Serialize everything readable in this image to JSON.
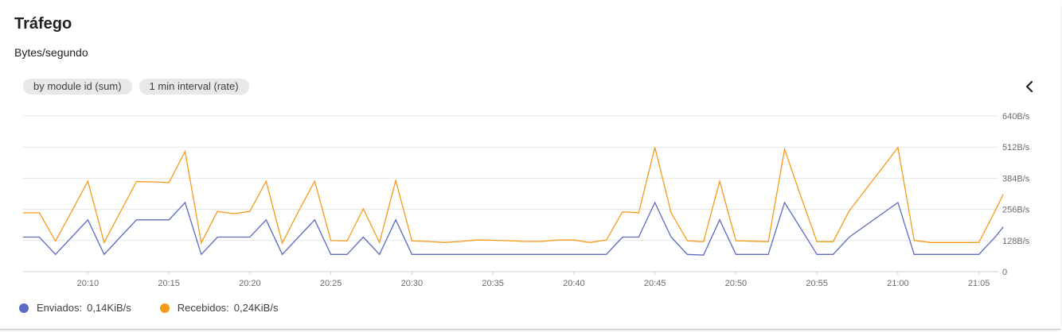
{
  "header": {
    "title": "Tráfego",
    "subtitle": "Bytes/segundo"
  },
  "chips": [
    "by module id (sum)",
    "1 min interval (rate)"
  ],
  "controls": {
    "collapse_icon": "chevron-left-icon"
  },
  "colors": {
    "enviados": "#5c6bc0",
    "recebidos": "#f59b18",
    "grid": "#e6e6e6",
    "axis_text": "#6b6b6b"
  },
  "legend": [
    {
      "label": "Enviados:",
      "value": "0,14KiB/s",
      "color": "#5c6bc0"
    },
    {
      "label": "Recebidos:",
      "value": "0,24KiB/s",
      "color": "#f59b18"
    }
  ],
  "chart_data": {
    "type": "line",
    "x_unit": "minute",
    "x_start": "20:06",
    "xlim": [
      "20:06",
      "21:06"
    ],
    "x_ticks": [
      "20:10",
      "20:15",
      "20:20",
      "20:25",
      "20:30",
      "20:35",
      "20:40",
      "20:45",
      "20:50",
      "20:55",
      "21:00",
      "21:05"
    ],
    "y_ticks": [
      0,
      128,
      256,
      384,
      512,
      640
    ],
    "y_tick_labels": [
      "0",
      "128B/s",
      "256B/s",
      "384B/s",
      "512B/s",
      "640B/s"
    ],
    "ylim": [
      0,
      640
    ],
    "grid": true,
    "legend_position": "bottom-left",
    "series": [
      {
        "name": "Enviados",
        "color": "#5c6bc0",
        "points": [
          [
            "20:06",
            142
          ],
          [
            "20:07",
            142
          ],
          [
            "20:08",
            71
          ],
          [
            "20:09",
            142
          ],
          [
            "20:10",
            213
          ],
          [
            "20:11",
            71
          ],
          [
            "20:12",
            142
          ],
          [
            "20:13",
            213
          ],
          [
            "20:14",
            213
          ],
          [
            "20:15",
            213
          ],
          [
            "20:16",
            284
          ],
          [
            "20:17",
            71
          ],
          [
            "20:18",
            142
          ],
          [
            "20:19",
            142
          ],
          [
            "20:20",
            142
          ],
          [
            "20:21",
            213
          ],
          [
            "20:22",
            71
          ],
          [
            "20:23",
            142
          ],
          [
            "20:24",
            213
          ],
          [
            "20:25",
            71
          ],
          [
            "20:26",
            71
          ],
          [
            "20:27",
            142
          ],
          [
            "20:28",
            71
          ],
          [
            "20:29",
            213
          ],
          [
            "20:30",
            71
          ],
          [
            "20:31",
            71
          ],
          [
            "20:32",
            71
          ],
          [
            "20:33",
            71
          ],
          [
            "20:34",
            71
          ],
          [
            "20:35",
            71
          ],
          [
            "20:36",
            71
          ],
          [
            "20:37",
            71
          ],
          [
            "20:38",
            71
          ],
          [
            "20:39",
            71
          ],
          [
            "20:40",
            71
          ],
          [
            "20:41",
            71
          ],
          [
            "20:42",
            71
          ],
          [
            "20:43",
            142
          ],
          [
            "20:44",
            142
          ],
          [
            "20:45",
            284
          ],
          [
            "20:46",
            142
          ],
          [
            "20:47",
            71
          ],
          [
            "20:48",
            68
          ],
          [
            "20:49",
            213
          ],
          [
            "20:50",
            71
          ],
          [
            "20:51",
            71
          ],
          [
            "20:52",
            71
          ],
          [
            "20:53",
            284
          ],
          [
            "20:54",
            178
          ],
          [
            "20:55",
            71
          ],
          [
            "20:56",
            71
          ],
          [
            "20:57",
            142
          ],
          [
            "21:00",
            284
          ],
          [
            "21:01",
            71
          ],
          [
            "21:02",
            71
          ],
          [
            "21:03",
            71
          ],
          [
            "21:04",
            71
          ],
          [
            "21:05",
            71
          ],
          [
            "21:06",
            142
          ],
          [
            "21:06:30",
            184
          ]
        ]
      },
      {
        "name": "Recebidos",
        "color": "#f59b18",
        "points": [
          [
            "20:06",
            242
          ],
          [
            "20:07",
            242
          ],
          [
            "20:08",
            126
          ],
          [
            "20:09",
            248
          ],
          [
            "20:10",
            372
          ],
          [
            "20:11",
            120
          ],
          [
            "20:12",
            245
          ],
          [
            "20:13",
            370
          ],
          [
            "20:14",
            369
          ],
          [
            "20:15",
            366
          ],
          [
            "20:16",
            494
          ],
          [
            "20:17",
            119
          ],
          [
            "20:18",
            248
          ],
          [
            "20:19",
            238
          ],
          [
            "20:20",
            248
          ],
          [
            "20:21",
            372
          ],
          [
            "20:22",
            117
          ],
          [
            "20:23",
            248
          ],
          [
            "20:24",
            372
          ],
          [
            "20:25",
            128
          ],
          [
            "20:26",
            126
          ],
          [
            "20:27",
            258
          ],
          [
            "20:28",
            120
          ],
          [
            "20:29",
            375
          ],
          [
            "20:30",
            126
          ],
          [
            "20:31",
            124
          ],
          [
            "20:32",
            120
          ],
          [
            "20:33",
            124
          ],
          [
            "20:34",
            130
          ],
          [
            "20:35",
            129
          ],
          [
            "20:36",
            127
          ],
          [
            "20:37",
            124
          ],
          [
            "20:38",
            124
          ],
          [
            "20:39",
            130
          ],
          [
            "20:40",
            130
          ],
          [
            "20:41",
            120
          ],
          [
            "20:42",
            130
          ],
          [
            "20:43",
            246
          ],
          [
            "20:44",
            242
          ],
          [
            "20:45",
            511
          ],
          [
            "20:46",
            242
          ],
          [
            "20:47",
            127
          ],
          [
            "20:48",
            123
          ],
          [
            "20:49",
            372
          ],
          [
            "20:50",
            127
          ],
          [
            "20:51",
            125
          ],
          [
            "20:52",
            123
          ],
          [
            "20:53",
            503
          ],
          [
            "20:54",
            311
          ],
          [
            "20:55",
            123
          ],
          [
            "20:56",
            123
          ],
          [
            "20:57",
            250
          ],
          [
            "21:00",
            510
          ],
          [
            "21:01",
            128
          ],
          [
            "21:02",
            120
          ],
          [
            "21:03",
            120
          ],
          [
            "21:04",
            120
          ],
          [
            "21:05",
            120
          ],
          [
            "21:06",
            250
          ],
          [
            "21:06:30",
            318
          ]
        ]
      }
    ]
  }
}
